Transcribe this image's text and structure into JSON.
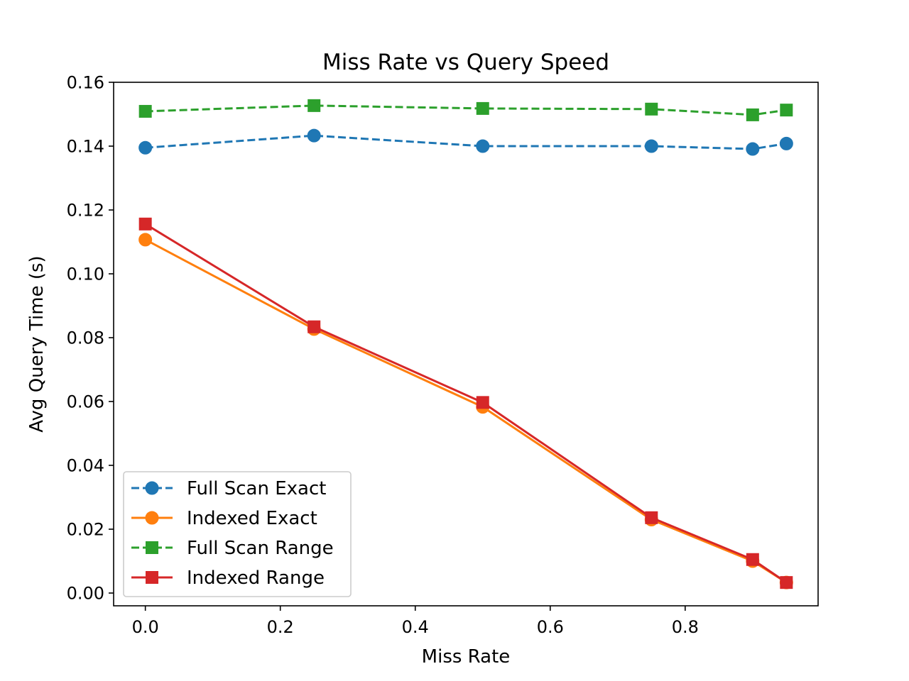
{
  "chart_data": {
    "type": "line",
    "title": "Miss Rate vs Query Speed",
    "xlabel": "Miss Rate",
    "ylabel": "Avg Query Time (s)",
    "xlim": [
      -0.047,
      0.997
    ],
    "ylim": [
      -0.004,
      0.16
    ],
    "xticks": [
      0.0,
      0.2,
      0.4,
      0.6,
      0.8
    ],
    "xtick_labels": [
      "0.0",
      "0.2",
      "0.4",
      "0.6",
      "0.8"
    ],
    "yticks": [
      0.0,
      0.02,
      0.04,
      0.06,
      0.08,
      0.1,
      0.12,
      0.14,
      0.16
    ],
    "ytick_labels": [
      "0.00",
      "0.02",
      "0.04",
      "0.06",
      "0.08",
      "0.10",
      "0.12",
      "0.14",
      "0.16"
    ],
    "grid": false,
    "legend_position": "lower-left",
    "x": [
      0.0,
      0.25,
      0.5,
      0.75,
      0.9,
      0.95
    ],
    "series": [
      {
        "name": "Full Scan Exact",
        "values": [
          0.1395,
          0.1433,
          0.14,
          0.14,
          0.1391,
          0.1408
        ],
        "color": "#1f77b4",
        "linestyle": "dashed",
        "marker": "circle"
      },
      {
        "name": "Indexed Exact",
        "values": [
          0.1107,
          0.0827,
          0.0583,
          0.023,
          0.01,
          0.0033
        ],
        "color": "#ff7f0e",
        "linestyle": "solid",
        "marker": "circle"
      },
      {
        "name": "Full Scan Range",
        "values": [
          0.1509,
          0.1527,
          0.1518,
          0.1516,
          0.1498,
          0.1513
        ],
        "color": "#2ca02c",
        "linestyle": "dashed",
        "marker": "square"
      },
      {
        "name": "Indexed Range",
        "values": [
          0.1156,
          0.0834,
          0.0597,
          0.0236,
          0.0105,
          0.0033
        ],
        "color": "#d62728",
        "linestyle": "solid",
        "marker": "square"
      }
    ]
  }
}
